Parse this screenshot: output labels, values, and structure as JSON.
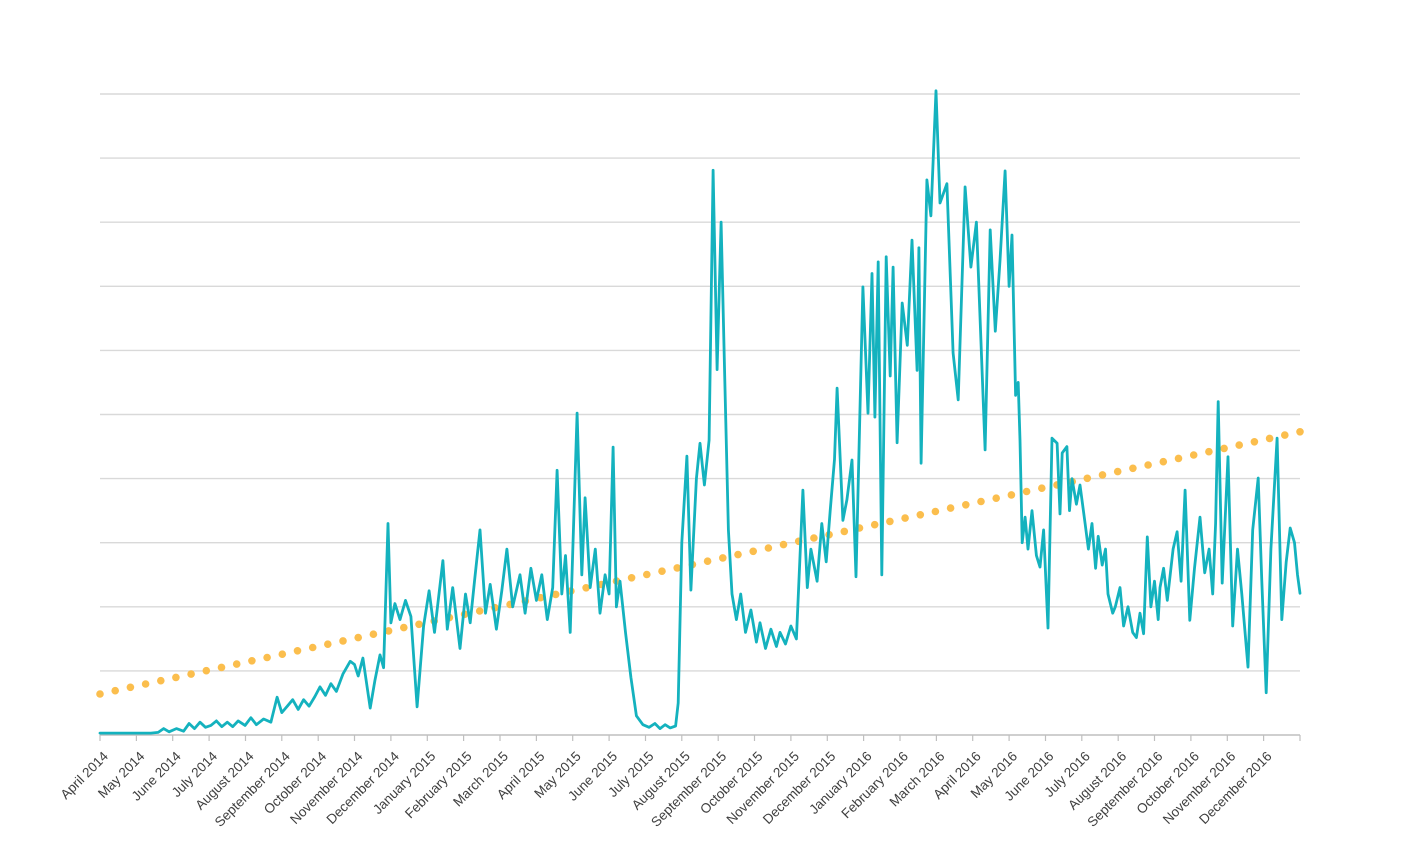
{
  "chart_data": {
    "type": "line",
    "title": "",
    "legend": "none",
    "grid": "horizontal",
    "colors": {
      "daily_line": "#14B2BE",
      "trend_dots": "#FBBE4D",
      "gridline": "#d9d9d9",
      "axis": "#bfbfbf",
      "label_text": "#3f3f3f"
    },
    "x_axis": {
      "labels": [
        "April 2014",
        "May 2014",
        "June 2014",
        "July 2014",
        "August 2014",
        "September 2014",
        "October 2014",
        "November 2014",
        "December 2014",
        "January 2015",
        "February 2015",
        "March 2015",
        "April 2015",
        "May 2015",
        "June 2015",
        "July 2015",
        "August 2015",
        "September 2015",
        "October 2015",
        "November 2015",
        "December 2015",
        "January 2016",
        "February 2016",
        "March 2016",
        "April 2016",
        "May 2016",
        "June 2016",
        "July 2016",
        "August 2016",
        "September 2016",
        "October 2016",
        "November 2016",
        "December 2016"
      ],
      "label_rotation_deg": -45,
      "tick_marks": 34
    },
    "y_axis": {
      "labels_visible": false,
      "gridline_count": 11,
      "range_units": [
        0,
        10
      ]
    },
    "series": [
      {
        "name": "daily-values",
        "style": "solid",
        "color": "#14B2BE",
        "x_unit": "months-since-april-2014",
        "y_unit": "gridline-units",
        "points": [
          [
            0,
            0.03
          ],
          [
            0.5,
            0.03
          ],
          [
            1.0,
            0.03
          ],
          [
            1.4,
            0.03
          ],
          [
            1.6,
            0.04
          ],
          [
            1.75,
            0.1
          ],
          [
            1.9,
            0.05
          ],
          [
            2.1,
            0.1
          ],
          [
            2.3,
            0.06
          ],
          [
            2.45,
            0.18
          ],
          [
            2.6,
            0.1
          ],
          [
            2.75,
            0.2
          ],
          [
            2.9,
            0.12
          ],
          [
            3.05,
            0.15
          ],
          [
            3.2,
            0.22
          ],
          [
            3.35,
            0.13
          ],
          [
            3.5,
            0.2
          ],
          [
            3.65,
            0.13
          ],
          [
            3.8,
            0.22
          ],
          [
            3.99,
            0.15
          ],
          [
            4.15,
            0.27
          ],
          [
            4.3,
            0.16
          ],
          [
            4.5,
            0.25
          ],
          [
            4.7,
            0.2
          ],
          [
            4.87,
            0.59
          ],
          [
            5.0,
            0.35
          ],
          [
            5.15,
            0.45
          ],
          [
            5.3,
            0.55
          ],
          [
            5.45,
            0.4
          ],
          [
            5.6,
            0.55
          ],
          [
            5.75,
            0.45
          ],
          [
            5.91,
            0.6
          ],
          [
            6.05,
            0.75
          ],
          [
            6.2,
            0.62
          ],
          [
            6.35,
            0.8
          ],
          [
            6.5,
            0.68
          ],
          [
            6.68,
            0.95
          ],
          [
            6.88,
            1.15
          ],
          [
            7.0,
            1.1
          ],
          [
            7.1,
            0.92
          ],
          [
            7.23,
            1.2
          ],
          [
            7.43,
            0.42
          ],
          [
            7.56,
            0.85
          ],
          [
            7.7,
            1.25
          ],
          [
            7.8,
            1.05
          ],
          [
            7.92,
            3.3
          ],
          [
            8.0,
            1.75
          ],
          [
            8.11,
            2.05
          ],
          [
            8.25,
            1.8
          ],
          [
            8.4,
            2.1
          ],
          [
            8.55,
            1.85
          ],
          [
            8.72,
            0.44
          ],
          [
            8.9,
            1.7
          ],
          [
            9.05,
            2.25
          ],
          [
            9.2,
            1.6
          ],
          [
            9.43,
            2.72
          ],
          [
            9.55,
            1.65
          ],
          [
            9.7,
            2.3
          ],
          [
            9.9,
            1.35
          ],
          [
            10.05,
            2.2
          ],
          [
            10.18,
            1.75
          ],
          [
            10.3,
            2.4
          ],
          [
            10.45,
            3.2
          ],
          [
            10.6,
            1.9
          ],
          [
            10.73,
            2.35
          ],
          [
            10.9,
            1.65
          ],
          [
            11.05,
            2.25
          ],
          [
            11.19,
            2.9
          ],
          [
            11.35,
            2.0
          ],
          [
            11.55,
            2.5
          ],
          [
            11.69,
            1.9
          ],
          [
            11.85,
            2.6
          ],
          [
            12.0,
            2.1
          ],
          [
            12.15,
            2.5
          ],
          [
            12.3,
            1.8
          ],
          [
            12.45,
            2.3
          ],
          [
            12.57,
            4.13
          ],
          [
            12.7,
            2.2
          ],
          [
            12.8,
            2.8
          ],
          [
            12.93,
            1.6
          ],
          [
            13.12,
            5.02
          ],
          [
            13.25,
            2.5
          ],
          [
            13.34,
            3.7
          ],
          [
            13.48,
            2.3
          ],
          [
            13.62,
            2.9
          ],
          [
            13.75,
            1.9
          ],
          [
            13.89,
            2.5
          ],
          [
            14.0,
            2.2
          ],
          [
            14.11,
            4.49
          ],
          [
            14.2,
            2.0
          ],
          [
            14.3,
            2.4
          ],
          [
            14.45,
            1.6
          ],
          [
            14.6,
            0.9
          ],
          [
            14.75,
            0.3
          ],
          [
            14.93,
            0.16
          ],
          [
            15.1,
            0.12
          ],
          [
            15.26,
            0.18
          ],
          [
            15.4,
            0.1
          ],
          [
            15.54,
            0.16
          ],
          [
            15.68,
            0.11
          ],
          [
            15.83,
            0.14
          ],
          [
            15.9,
            0.5
          ],
          [
            16.0,
            3.0
          ],
          [
            16.14,
            4.35
          ],
          [
            16.25,
            2.26
          ],
          [
            16.4,
            4.0
          ],
          [
            16.5,
            4.55
          ],
          [
            16.62,
            3.9
          ],
          [
            16.75,
            4.6
          ],
          [
            16.86,
            8.81
          ],
          [
            16.97,
            5.7
          ],
          [
            17.08,
            8.0
          ],
          [
            17.18,
            5.6
          ],
          [
            17.28,
            3.2
          ],
          [
            17.38,
            2.2
          ],
          [
            17.5,
            1.8
          ],
          [
            17.62,
            2.2
          ],
          [
            17.75,
            1.6
          ],
          [
            17.9,
            1.95
          ],
          [
            18.05,
            1.45
          ],
          [
            18.15,
            1.75
          ],
          [
            18.3,
            1.35
          ],
          [
            18.45,
            1.65
          ],
          [
            18.6,
            1.38
          ],
          [
            18.7,
            1.6
          ],
          [
            18.85,
            1.42
          ],
          [
            19.0,
            1.7
          ],
          [
            19.15,
            1.5
          ],
          [
            19.33,
            3.82
          ],
          [
            19.45,
            2.3
          ],
          [
            19.55,
            2.9
          ],
          [
            19.72,
            2.4
          ],
          [
            19.85,
            3.3
          ],
          [
            19.97,
            2.7
          ],
          [
            20.08,
            3.5
          ],
          [
            20.2,
            4.3
          ],
          [
            20.27,
            5.41
          ],
          [
            20.43,
            3.35
          ],
          [
            20.54,
            3.67
          ],
          [
            20.68,
            4.29
          ],
          [
            20.79,
            2.47
          ],
          [
            20.98,
            6.99
          ],
          [
            21.12,
            5.02
          ],
          [
            21.23,
            7.2
          ],
          [
            21.31,
            4.96
          ],
          [
            21.4,
            7.38
          ],
          [
            21.5,
            2.5
          ],
          [
            21.62,
            7.46
          ],
          [
            21.73,
            5.6
          ],
          [
            21.81,
            7.3
          ],
          [
            21.92,
            4.56
          ],
          [
            22.06,
            6.74
          ],
          [
            22.2,
            6.08
          ],
          [
            22.33,
            7.72
          ],
          [
            22.47,
            5.69
          ],
          [
            22.52,
            7.6
          ],
          [
            22.58,
            4.24
          ],
          [
            22.74,
            8.66
          ],
          [
            22.85,
            8.1
          ],
          [
            22.99,
            10.05
          ],
          [
            23.1,
            8.3
          ],
          [
            23.29,
            8.6
          ],
          [
            23.46,
            5.96
          ],
          [
            23.6,
            5.23
          ],
          [
            23.79,
            8.55
          ],
          [
            23.95,
            7.3
          ],
          [
            24.1,
            8.0
          ],
          [
            24.34,
            4.45
          ],
          [
            24.48,
            7.88
          ],
          [
            24.62,
            6.3
          ],
          [
            24.75,
            7.4
          ],
          [
            24.89,
            8.8
          ],
          [
            25.0,
            7.0
          ],
          [
            25.08,
            7.8
          ],
          [
            25.18,
            5.3
          ],
          [
            25.25,
            5.5
          ],
          [
            25.3,
            4.6
          ],
          [
            25.36,
            3.0
          ],
          [
            25.44,
            3.4
          ],
          [
            25.52,
            2.9
          ],
          [
            25.63,
            3.5
          ],
          [
            25.75,
            2.8
          ],
          [
            25.85,
            2.62
          ],
          [
            25.95,
            3.2
          ],
          [
            26.07,
            1.67
          ],
          [
            26.18,
            4.63
          ],
          [
            26.32,
            4.55
          ],
          [
            26.4,
            3.45
          ],
          [
            26.46,
            4.4
          ],
          [
            26.59,
            4.5
          ],
          [
            26.66,
            3.5
          ],
          [
            26.73,
            4.0
          ],
          [
            26.85,
            3.6
          ],
          [
            26.95,
            3.9
          ],
          [
            27.09,
            3.3
          ],
          [
            27.18,
            2.9
          ],
          [
            27.28,
            3.3
          ],
          [
            27.38,
            2.6
          ],
          [
            27.45,
            3.1
          ],
          [
            27.56,
            2.65
          ],
          [
            27.65,
            2.9
          ],
          [
            27.72,
            2.2
          ],
          [
            27.85,
            1.9
          ],
          [
            27.92,
            2.0
          ],
          [
            28.05,
            2.3
          ],
          [
            28.15,
            1.7
          ],
          [
            28.27,
            2.0
          ],
          [
            28.4,
            1.6
          ],
          [
            28.5,
            1.52
          ],
          [
            28.6,
            1.9
          ],
          [
            28.7,
            1.58
          ],
          [
            28.8,
            3.09
          ],
          [
            28.9,
            2.0
          ],
          [
            29.0,
            2.4
          ],
          [
            29.1,
            1.8
          ],
          [
            29.15,
            2.3
          ],
          [
            29.25,
            2.6
          ],
          [
            29.35,
            2.1
          ],
          [
            29.51,
            2.9
          ],
          [
            29.62,
            3.17
          ],
          [
            29.73,
            2.4
          ],
          [
            29.84,
            3.82
          ],
          [
            29.97,
            1.79
          ],
          [
            30.1,
            2.6
          ],
          [
            30.25,
            3.4
          ],
          [
            30.38,
            2.53
          ],
          [
            30.5,
            2.9
          ],
          [
            30.6,
            2.2
          ],
          [
            30.68,
            3.3
          ],
          [
            30.75,
            5.2
          ],
          [
            30.86,
            2.37
          ],
          [
            31.02,
            4.34
          ],
          [
            31.15,
            1.7
          ],
          [
            31.28,
            2.9
          ],
          [
            31.4,
            2.2
          ],
          [
            31.57,
            1.06
          ],
          [
            31.7,
            3.2
          ],
          [
            31.85,
            4.01
          ],
          [
            31.95,
            2.4
          ],
          [
            32.07,
            0.66
          ],
          [
            32.2,
            2.9
          ],
          [
            32.37,
            4.63
          ],
          [
            32.5,
            1.8
          ],
          [
            32.62,
            2.7
          ],
          [
            32.73,
            3.23
          ],
          [
            32.85,
            3.0
          ],
          [
            32.93,
            2.5
          ],
          [
            33.0,
            2.21
          ]
        ]
      },
      {
        "name": "linear-trend",
        "style": "dotted",
        "color": "#FBBE4D",
        "start": [
          0,
          0.64
        ],
        "end": [
          33,
          4.73
        ],
        "dot_count": 80
      }
    ]
  }
}
